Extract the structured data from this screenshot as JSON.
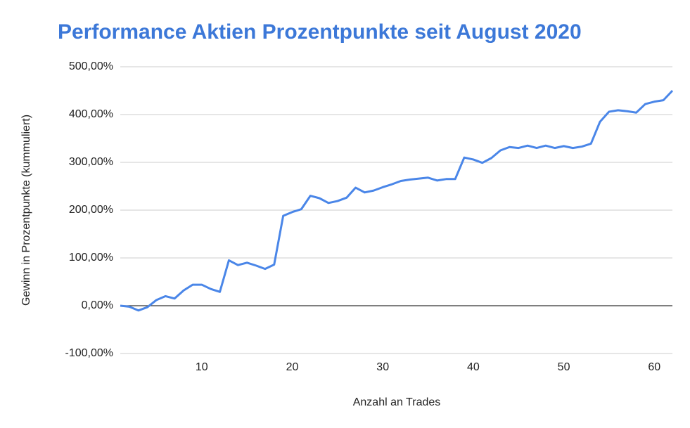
{
  "chart_data": {
    "type": "line",
    "title": "Performance Aktien Prozentpunkte seit August 2020",
    "x_label": "Anzahl an Trades",
    "y_label": "Gewinn in Prozentpunkte (kummuliert)",
    "x": [
      1,
      2,
      3,
      4,
      5,
      6,
      7,
      8,
      9,
      10,
      11,
      12,
      13,
      14,
      15,
      16,
      17,
      18,
      19,
      20,
      21,
      22,
      23,
      24,
      25,
      26,
      27,
      28,
      29,
      30,
      31,
      32,
      33,
      34,
      35,
      36,
      37,
      38,
      39,
      40,
      41,
      42,
      43,
      44,
      45,
      46,
      47,
      48,
      49,
      50,
      51,
      52,
      53,
      54,
      55,
      56,
      57,
      58,
      59,
      60,
      61,
      62
    ],
    "values": [
      0,
      -2,
      -10,
      -3,
      12,
      20,
      15,
      32,
      44,
      44,
      35,
      29,
      95,
      85,
      90,
      84,
      77,
      86,
      188,
      196,
      202,
      230,
      225,
      215,
      219,
      226,
      247,
      237,
      241,
      248,
      254,
      261,
      264,
      266,
      268,
      262,
      265,
      265,
      310,
      306,
      299,
      309,
      325,
      332,
      330,
      335,
      330,
      335,
      330,
      334,
      330,
      333,
      339,
      385,
      406,
      409,
      407,
      404,
      422,
      427,
      430,
      450
    ],
    "color": "#4a86e8",
    "xlim": [
      1,
      62
    ],
    "xticks": [
      10,
      20,
      30,
      40,
      50,
      60
    ],
    "ylim": [
      -100,
      500
    ],
    "yticks": [
      {
        "value": -100,
        "label": "-100,00%"
      },
      {
        "value": 0,
        "label": "0,00%"
      },
      {
        "value": 100,
        "label": "100,00%"
      },
      {
        "value": 200,
        "label": "200,00%"
      },
      {
        "value": 300,
        "label": "300,00%"
      },
      {
        "value": 400,
        "label": "400,00%"
      },
      {
        "value": 500,
        "label": "500,00%"
      }
    ],
    "grid": true
  }
}
